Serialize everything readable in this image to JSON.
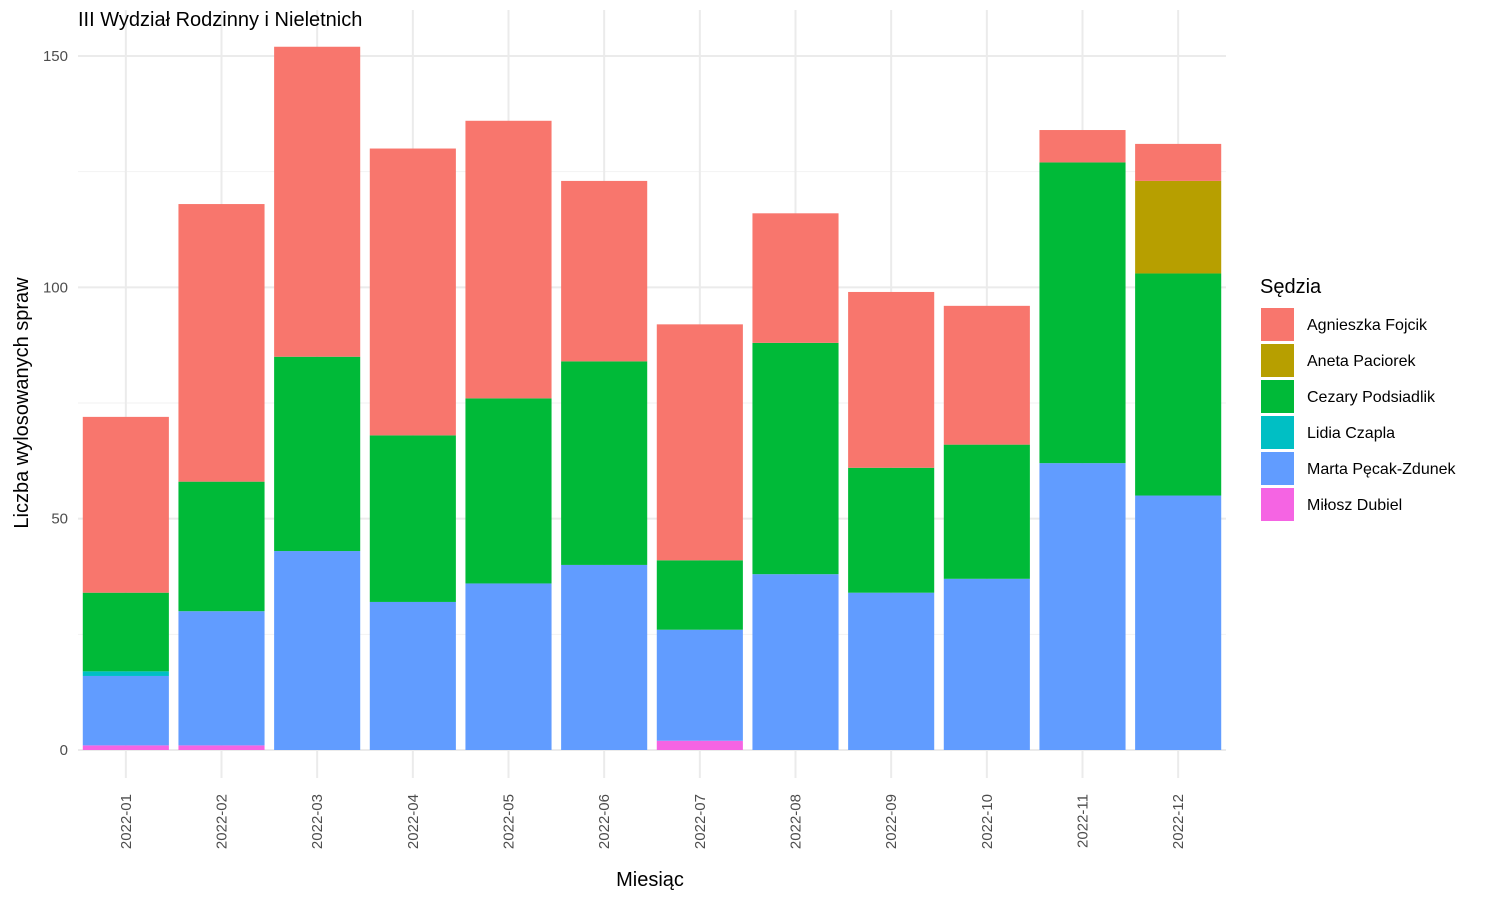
{
  "chart_data": {
    "type": "bar",
    "stacked": true,
    "title": "III Wydział Rodzinny i Nieletnich",
    "xlabel": "Miesiąc",
    "ylabel": "Liczba wylosowanych spraw",
    "ylim": [
      0,
      152
    ],
    "yticks": [
      0,
      50,
      100,
      150
    ],
    "grid": true,
    "legend_title": "Sędzia",
    "legend_position": "right",
    "categories": [
      "2022-01",
      "2022-02",
      "2022-03",
      "2022-04",
      "2022-05",
      "2022-06",
      "2022-07",
      "2022-08",
      "2022-09",
      "2022-10",
      "2022-11",
      "2022-12"
    ],
    "series": [
      {
        "name": "Agnieszka Fojcik",
        "color": "#F8766D",
        "values": [
          38,
          60,
          67,
          62,
          60,
          39,
          51,
          28,
          38,
          30,
          7,
          8
        ]
      },
      {
        "name": "Aneta Paciorek",
        "color": "#B79F00",
        "values": [
          0,
          0,
          0,
          0,
          0,
          0,
          0,
          0,
          0,
          0,
          0,
          20
        ]
      },
      {
        "name": "Cezary Podsiadlik",
        "color": "#00BA38",
        "values": [
          17,
          28,
          42,
          36,
          40,
          44,
          15,
          50,
          27,
          29,
          65,
          48
        ]
      },
      {
        "name": "Lidia Czapla",
        "color": "#00BFC4",
        "values": [
          1,
          0,
          0,
          0,
          0,
          0,
          0,
          0,
          0,
          0,
          0,
          0
        ]
      },
      {
        "name": "Marta Pęcak-Zdunek",
        "color": "#619CFF",
        "values": [
          15,
          29,
          43,
          32,
          36,
          40,
          24,
          38,
          34,
          37,
          62,
          55
        ]
      },
      {
        "name": "Miłosz Dubiel",
        "color": "#F564E3",
        "values": [
          1,
          1,
          0,
          0,
          0,
          0,
          2,
          0,
          0,
          0,
          0,
          0
        ]
      }
    ]
  }
}
